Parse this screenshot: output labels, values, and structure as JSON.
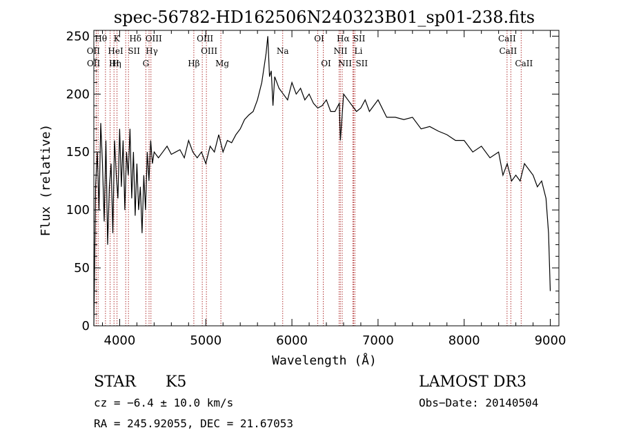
{
  "chart_data": {
    "type": "line",
    "title": "spec-56782-HD162506N240323B01_sp01-238.fits",
    "xlabel": "Wavelength (Å)",
    "ylabel": "Flux (relative)",
    "xlim": [
      3700,
      9100
    ],
    "ylim": [
      0,
      255
    ],
    "xticks": [
      4000,
      5000,
      6000,
      7000,
      8000,
      9000
    ],
    "yticks": [
      0,
      50,
      100,
      150,
      200,
      250
    ],
    "grid": false,
    "series": [
      {
        "x": [
          3700,
          3720,
          3740,
          3760,
          3780,
          3800,
          3820,
          3840,
          3860,
          3880,
          3900,
          3920,
          3940,
          3960,
          3980,
          4000,
          4020,
          4040,
          4060,
          4080,
          4100,
          4120,
          4140,
          4160,
          4180,
          4200,
          4220,
          4240,
          4260,
          4280,
          4300,
          4320,
          4340,
          4360,
          4380,
          4400,
          4450,
          4500,
          4550,
          4600,
          4650,
          4700,
          4750,
          4800,
          4850,
          4900,
          4950,
          5000,
          5050,
          5100,
          5150,
          5200,
          5250,
          5300,
          5350,
          5400,
          5450,
          5500,
          5550,
          5600,
          5650,
          5700,
          5720,
          5740,
          5760,
          5780,
          5800,
          5850,
          5900,
          5950,
          6000,
          6050,
          6100,
          6150,
          6200,
          6250,
          6300,
          6350,
          6400,
          6450,
          6500,
          6550,
          6563,
          6600,
          6650,
          6700,
          6750,
          6800,
          6850,
          6900,
          6950,
          7000,
          7100,
          7200,
          7300,
          7400,
          7500,
          7600,
          7700,
          7800,
          7900,
          8000,
          8100,
          8200,
          8300,
          8400,
          8450,
          8500,
          8550,
          8600,
          8650,
          8700,
          8750,
          8800,
          8850,
          8900,
          8950,
          8980,
          9000
        ],
        "y": [
          0,
          120,
          150,
          100,
          175,
          140,
          90,
          160,
          70,
          120,
          140,
          80,
          160,
          130,
          110,
          170,
          120,
          160,
          100,
          150,
          130,
          170,
          110,
          150,
          95,
          140,
          100,
          120,
          80,
          130,
          100,
          150,
          125,
          160,
          140,
          150,
          145,
          150,
          155,
          148,
          150,
          152,
          145,
          160,
          150,
          145,
          150,
          140,
          155,
          150,
          165,
          150,
          160,
          158,
          165,
          170,
          178,
          182,
          185,
          195,
          210,
          235,
          250,
          215,
          220,
          190,
          215,
          205,
          200,
          195,
          210,
          200,
          205,
          195,
          200,
          192,
          188,
          190,
          195,
          185,
          185,
          192,
          160,
          200,
          195,
          190,
          185,
          188,
          195,
          185,
          190,
          195,
          180,
          180,
          178,
          180,
          170,
          172,
          168,
          165,
          160,
          160,
          150,
          155,
          145,
          150,
          130,
          140,
          125,
          130,
          125,
          140,
          135,
          130,
          120,
          125,
          110,
          80,
          30
        ]
      }
    ],
    "annotations": [
      "Hθ",
      "OII",
      "OII",
      "K",
      "HeI",
      "Hη",
      "Hδ",
      "SII",
      "H",
      "OIII",
      "Hγ",
      "G",
      "Hβ",
      "OIII",
      "OIII",
      "Mg",
      "Na",
      "OI",
      "OI",
      "Hα",
      "SII",
      "NII",
      "Li",
      "NII",
      "SII",
      "CaII",
      "CaII",
      "CaII"
    ]
  },
  "footer": {
    "object": "STAR",
    "subclass": "K5",
    "survey": "LAMOST DR3",
    "cz": "cz = −6.4 ± 10.0 km/s",
    "obs_date": "Obs−Date: 20140504",
    "radec": "RA = 245.92055, DEC =  21.67053"
  },
  "colors": {
    "spectrum": "#000000",
    "line_marker": "#b03030"
  }
}
